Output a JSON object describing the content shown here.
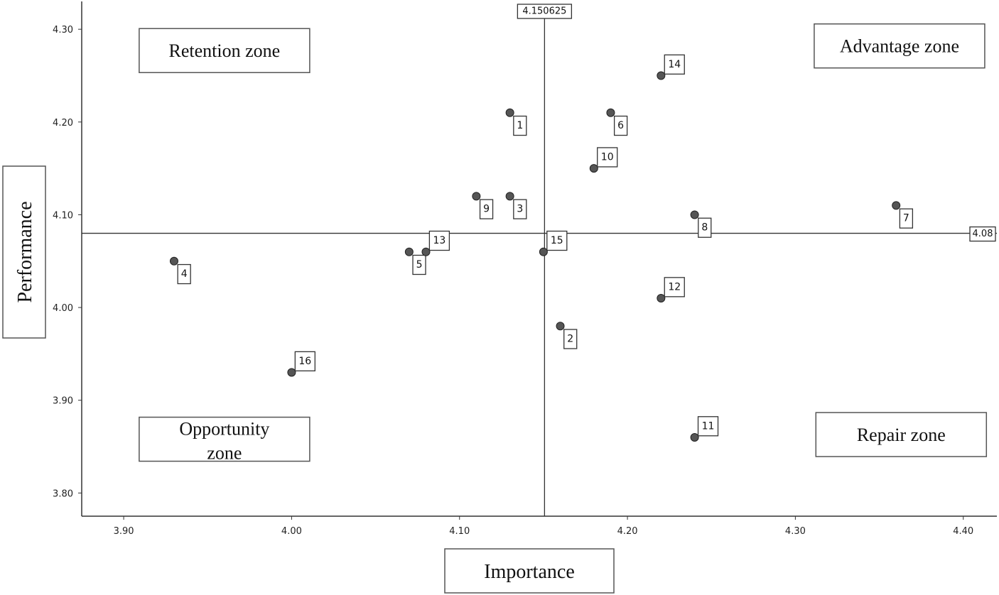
{
  "chart_data": {
    "type": "scatter",
    "xlabel": "Importance",
    "ylabel": "Performance",
    "xlim": [
      3.875,
      4.42
    ],
    "ylim": [
      3.775,
      4.33
    ],
    "x_ticks": [
      "3.90",
      "4.00",
      "4.10",
      "4.20",
      "4.30",
      "4.40"
    ],
    "x_tick_values": [
      3.9,
      4.0,
      4.1,
      4.2,
      4.3,
      4.4
    ],
    "y_ticks": [
      "3.80",
      "3.90",
      "4.00",
      "4.10",
      "4.20",
      "4.30"
    ],
    "y_tick_values": [
      3.8,
      3.9,
      4.0,
      4.1,
      4.2,
      4.3
    ],
    "reference_lines": {
      "x": 4.150625,
      "x_label": "4.150625",
      "y": 4.08,
      "y_label": "4.08"
    },
    "zones": [
      {
        "name": "Retention zone",
        "x": 3.96,
        "y": 4.277
      },
      {
        "name": "Advantage zone",
        "x": 4.362,
        "y": 4.282
      },
      {
        "name": "Opportunity zone",
        "x": 3.96,
        "y": 3.858
      },
      {
        "name": "Repair zone",
        "x": 4.363,
        "y": 3.863
      }
    ],
    "points": [
      {
        "id": "1",
        "x": 4.13,
        "y": 4.21,
        "lx": 4.136,
        "ly": 4.196
      },
      {
        "id": "2",
        "x": 4.16,
        "y": 3.98,
        "lx": 4.166,
        "ly": 3.966
      },
      {
        "id": "3",
        "x": 4.13,
        "y": 4.12,
        "lx": 4.136,
        "ly": 4.106
      },
      {
        "id": "4",
        "x": 3.93,
        "y": 4.05,
        "lx": 3.936,
        "ly": 4.036
      },
      {
        "id": "5",
        "x": 4.07,
        "y": 4.06,
        "lx": 4.076,
        "ly": 4.046
      },
      {
        "id": "6",
        "x": 4.19,
        "y": 4.21,
        "lx": 4.196,
        "ly": 4.196
      },
      {
        "id": "7",
        "x": 4.36,
        "y": 4.11,
        "lx": 4.366,
        "ly": 4.096
      },
      {
        "id": "8",
        "x": 4.24,
        "y": 4.1,
        "lx": 4.246,
        "ly": 4.086
      },
      {
        "id": "9",
        "x": 4.11,
        "y": 4.12,
        "lx": 4.116,
        "ly": 4.106
      },
      {
        "id": "10",
        "x": 4.18,
        "y": 4.15,
        "lx": 4.188,
        "ly": 4.162
      },
      {
        "id": "11",
        "x": 4.24,
        "y": 3.86,
        "lx": 4.248,
        "ly": 3.872
      },
      {
        "id": "12",
        "x": 4.22,
        "y": 4.01,
        "lx": 4.228,
        "ly": 4.022
      },
      {
        "id": "13",
        "x": 4.08,
        "y": 4.06,
        "lx": 4.088,
        "ly": 4.072
      },
      {
        "id": "14",
        "x": 4.22,
        "y": 4.25,
        "lx": 4.228,
        "ly": 4.262
      },
      {
        "id": "15",
        "x": 4.15,
        "y": 4.06,
        "lx": 4.158,
        "ly": 4.072
      },
      {
        "id": "16",
        "x": 4.0,
        "y": 3.93,
        "lx": 4.008,
        "ly": 3.942
      }
    ]
  }
}
